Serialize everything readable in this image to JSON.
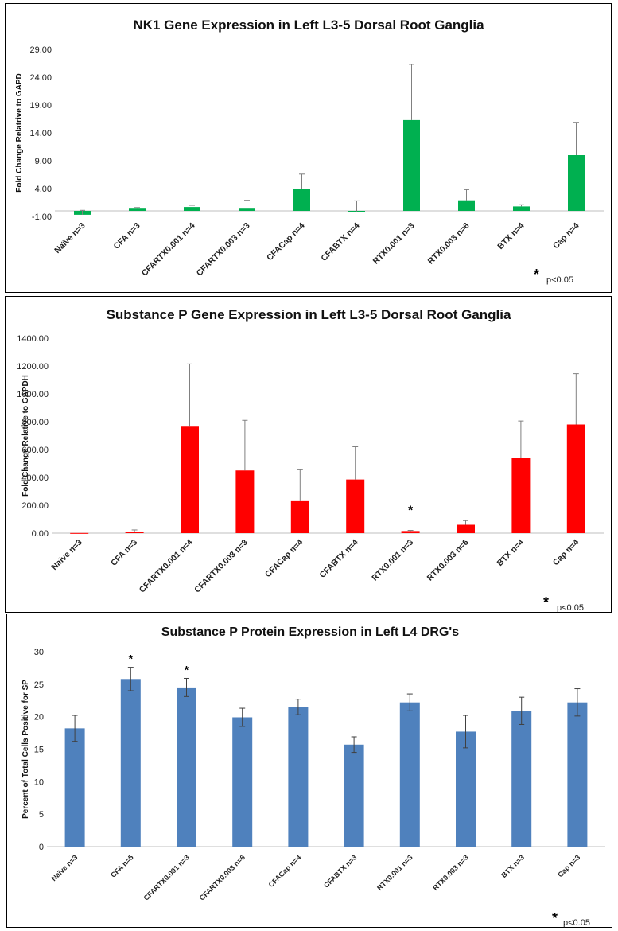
{
  "chart_data": [
    {
      "type": "bar",
      "title": "NK1 Gene Expression in Left L3-5 Dorsal Root Ganglia",
      "ylabel": "Fold Change Relatrive to GAPD",
      "xlabel": "",
      "ylim": [
        -1.0,
        29.0
      ],
      "yticks": [
        "-1.00",
        "4.00",
        "9.00",
        "14.00",
        "19.00",
        "24.00",
        "29.00"
      ],
      "categories": [
        "Naïve n=3",
        "CFA n=3",
        "CFARTX0.001 n=4",
        "CFARTX0.003 n=3",
        "CFACap n=4",
        "CFABTX n=4",
        "RTX0.001 n=3",
        "RTX0.003 n=6",
        "BTX n=4",
        "Cap n=4"
      ],
      "values": [
        -0.7,
        0.4,
        0.7,
        0.4,
        3.9,
        -0.1,
        16.3,
        1.9,
        0.8,
        10.0
      ],
      "error": [
        0.8,
        0.2,
        0.3,
        1.5,
        2.7,
        1.9,
        10.0,
        1.9,
        0.3,
        5.9
      ],
      "color": "#00b050",
      "significant": [],
      "legend_note": "p<0.05",
      "legend_star": "*"
    },
    {
      "type": "bar",
      "title": "Substance P Gene Expression in Left L3-5 Dorsal Root Ganglia",
      "ylabel": "Fold Change Relative to GAPDH",
      "xlabel": "",
      "ylim": [
        0,
        1400
      ],
      "yticks": [
        "0.00",
        "200.00",
        "400.00",
        "600.00",
        "800.00",
        "1000.00",
        "1200.00",
        "1400.00"
      ],
      "categories": [
        "Naïve n=3",
        "CFA n=3",
        "CFARTX0.001 n=4",
        "CFARTX0.003 n=3",
        "CFACap n=4",
        "CFABTX n=4",
        "RTX0.001 n=3",
        "RTX0.003 n=6",
        "BTX n=4",
        "Cap n=4"
      ],
      "values": [
        1,
        8,
        770,
        450,
        235,
        385,
        15,
        60,
        540,
        780
      ],
      "error": [
        0,
        15,
        445,
        360,
        220,
        235,
        5,
        30,
        265,
        365
      ],
      "color": "#ff0000",
      "significant": [
        6
      ],
      "legend_note": "p<0.05",
      "legend_star": "*"
    },
    {
      "type": "bar",
      "title": "Substance P Protein Expression in Left L4 DRG's",
      "ylabel": "Percent of Total Cells Positive for SP",
      "xlabel": "",
      "ylim": [
        0,
        30
      ],
      "yticks": [
        "0",
        "5",
        "10",
        "15",
        "20",
        "25",
        "30"
      ],
      "categories": [
        "Naïve n=3",
        "CFA n=5",
        "CFARTX0.001 n=3",
        "CFARTX0.003 n=6",
        "CFACap n=4",
        "CFABTX n=3",
        "RTX0.001 n=3",
        "RTX0.003 n=3",
        "BTX n=3",
        "Cap n=3"
      ],
      "values": [
        18.2,
        25.8,
        24.5,
        19.9,
        21.5,
        15.7,
        22.2,
        17.7,
        20.9,
        22.2
      ],
      "error": [
        2.0,
        1.8,
        1.4,
        1.4,
        1.2,
        1.2,
        1.3,
        2.5,
        2.1,
        2.1
      ],
      "color": "#4f81bd",
      "significant": [
        1,
        2
      ],
      "legend_note": "p<0.05",
      "legend_star": "*"
    }
  ]
}
